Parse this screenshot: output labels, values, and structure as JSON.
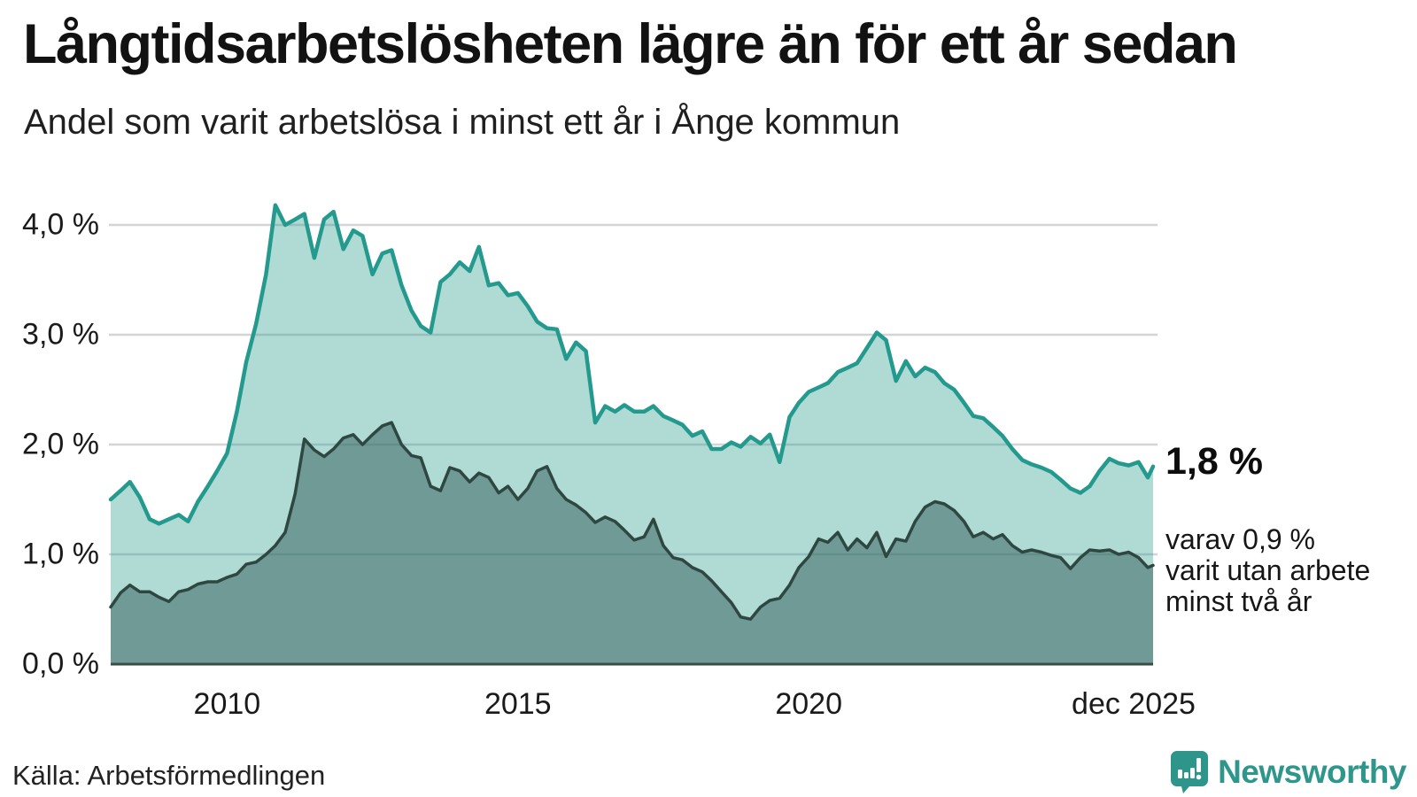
{
  "header": {
    "title": "Långtidsarbetslösheten lägre än för ett år sedan",
    "subtitle": "Andel som varit arbetslösa i minst ett år i Ånge kommun"
  },
  "annotations": {
    "end_value_label": "1,8 %",
    "sub_lines": [
      "varav 0,9 %",
      "varit utan arbete",
      "minst två år"
    ]
  },
  "footer": {
    "source": "Källa: Arbetsförmedlingen",
    "brand": "Newsworthy"
  },
  "colors": {
    "line_1yr": "#239a8d",
    "fill_1yr": "rgba(47,157,143,0.38)",
    "line_2yr": "#2e4742",
    "fill_2yr": "rgba(64,109,103,0.58)",
    "gridline": "#d3d4d8",
    "baseline": "#3d4c46",
    "brand_teal": "#2f968c",
    "text": "#121212"
  },
  "chart_data": {
    "type": "area",
    "title": "Långtidsarbetslösheten lägre än för ett år sedan",
    "subtitle": "Andel som varit arbetslösa i minst ett år i Ånge kommun",
    "x_unit": "decimal_year",
    "xlim": [
      2008.0,
      2025.92
    ],
    "ylim": [
      0,
      4.3
    ],
    "grid": true,
    "x": [
      2008.0,
      2008.17,
      2008.33,
      2008.5,
      2008.67,
      2008.83,
      2009.0,
      2009.17,
      2009.33,
      2009.5,
      2009.67,
      2009.83,
      2010.0,
      2010.17,
      2010.33,
      2010.5,
      2010.67,
      2010.83,
      2011.0,
      2011.17,
      2011.33,
      2011.5,
      2011.67,
      2011.83,
      2012.0,
      2012.17,
      2012.33,
      2012.5,
      2012.67,
      2012.83,
      2013.0,
      2013.17,
      2013.33,
      2013.5,
      2013.67,
      2013.83,
      2014.0,
      2014.17,
      2014.33,
      2014.5,
      2014.67,
      2014.83,
      2015.0,
      2015.17,
      2015.33,
      2015.5,
      2015.67,
      2015.83,
      2016.0,
      2016.17,
      2016.33,
      2016.5,
      2016.67,
      2016.83,
      2017.0,
      2017.17,
      2017.33,
      2017.5,
      2017.67,
      2017.83,
      2018.0,
      2018.17,
      2018.33,
      2018.5,
      2018.67,
      2018.83,
      2019.0,
      2019.17,
      2019.33,
      2019.5,
      2019.67,
      2019.83,
      2020.0,
      2020.17,
      2020.33,
      2020.5,
      2020.67,
      2020.83,
      2021.0,
      2021.17,
      2021.33,
      2021.5,
      2021.67,
      2021.83,
      2022.0,
      2022.17,
      2022.33,
      2022.5,
      2022.67,
      2022.83,
      2023.0,
      2023.17,
      2023.33,
      2023.5,
      2023.67,
      2023.83,
      2024.0,
      2024.17,
      2024.33,
      2024.5,
      2024.67,
      2024.83,
      2025.0,
      2025.17,
      2025.33,
      2025.5,
      2025.67,
      2025.83,
      2025.92
    ],
    "series": [
      {
        "name": "Andel arbetslösa minst ett år",
        "end_label": "1,8 %",
        "values": [
          1.5,
          1.58,
          1.66,
          1.52,
          1.32,
          1.28,
          1.32,
          1.36,
          1.3,
          1.48,
          1.62,
          1.76,
          1.92,
          2.3,
          2.75,
          3.1,
          3.55,
          4.18,
          4.0,
          4.05,
          4.1,
          3.7,
          4.05,
          4.12,
          3.78,
          3.95,
          3.9,
          3.55,
          3.74,
          3.77,
          3.45,
          3.22,
          3.08,
          3.02,
          3.48,
          3.55,
          3.66,
          3.58,
          3.8,
          3.45,
          3.47,
          3.36,
          3.38,
          3.26,
          3.12,
          3.06,
          3.05,
          2.78,
          2.93,
          2.85,
          2.2,
          2.35,
          2.3,
          2.36,
          2.3,
          2.3,
          2.35,
          2.26,
          2.22,
          2.18,
          2.08,
          2.12,
          1.96,
          1.96,
          2.02,
          1.98,
          2.07,
          2.01,
          2.09,
          1.84,
          2.25,
          2.38,
          2.48,
          2.52,
          2.56,
          2.66,
          2.7,
          2.74,
          2.88,
          3.02,
          2.95,
          2.58,
          2.76,
          2.62,
          2.7,
          2.66,
          2.56,
          2.5,
          2.38,
          2.26,
          2.24,
          2.16,
          2.08,
          1.96,
          1.86,
          1.82,
          1.79,
          1.75,
          1.68,
          1.6,
          1.56,
          1.62,
          1.76,
          1.87,
          1.83,
          1.81,
          1.84,
          1.7,
          1.8
        ]
      },
      {
        "name": "Andel arbetslösa minst två år",
        "end_label": "varav 0,9 % varit utan arbete minst två år",
        "values": [
          0.52,
          0.65,
          0.72,
          0.66,
          0.66,
          0.61,
          0.57,
          0.66,
          0.68,
          0.73,
          0.75,
          0.75,
          0.79,
          0.82,
          0.91,
          0.93,
          1.0,
          1.08,
          1.2,
          1.55,
          2.05,
          1.95,
          1.89,
          1.96,
          2.06,
          2.09,
          2.0,
          2.09,
          2.17,
          2.2,
          2.0,
          1.9,
          1.88,
          1.62,
          1.58,
          1.79,
          1.76,
          1.66,
          1.74,
          1.7,
          1.56,
          1.62,
          1.5,
          1.6,
          1.76,
          1.8,
          1.6,
          1.5,
          1.45,
          1.38,
          1.29,
          1.34,
          1.3,
          1.22,
          1.13,
          1.16,
          1.32,
          1.08,
          0.97,
          0.95,
          0.88,
          0.84,
          0.76,
          0.66,
          0.56,
          0.43,
          0.41,
          0.52,
          0.58,
          0.6,
          0.72,
          0.88,
          0.98,
          1.14,
          1.11,
          1.2,
          1.04,
          1.14,
          1.06,
          1.2,
          0.98,
          1.14,
          1.12,
          1.3,
          1.43,
          1.48,
          1.46,
          1.4,
          1.3,
          1.16,
          1.2,
          1.14,
          1.18,
          1.08,
          1.02,
          1.04,
          1.02,
          0.99,
          0.97,
          0.87,
          0.97,
          1.04,
          1.03,
          1.04,
          1.0,
          1.02,
          0.97,
          0.88,
          0.9
        ]
      }
    ],
    "yticks": [
      {
        "value": 4,
        "label": "4,0 %"
      },
      {
        "value": 3,
        "label": "3,0 %"
      },
      {
        "value": 2,
        "label": "2,0 %"
      },
      {
        "value": 1,
        "label": "1,0 %"
      },
      {
        "value": 0,
        "label": "0,0 %"
      }
    ],
    "xticks": [
      {
        "t": 2010.0,
        "label": "2010"
      },
      {
        "t": 2015.0,
        "label": "2015"
      },
      {
        "t": 2020.0,
        "label": "2020"
      },
      {
        "t": 2025.92,
        "label": "dec 2025"
      }
    ]
  }
}
